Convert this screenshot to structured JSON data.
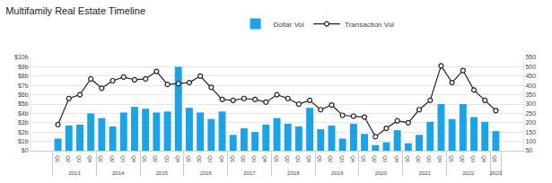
{
  "chart_data": {
    "type": "bar",
    "title": "Multifamily Real Estate Timeline",
    "categories": [
      "Q1",
      "Q2",
      "Q3",
      "Q4",
      "Q1",
      "Q2",
      "Q3",
      "Q4",
      "Q1",
      "Q2",
      "Q3",
      "Q4",
      "Q1",
      "Q2",
      "Q3",
      "Q4",
      "Q1",
      "Q2",
      "Q3",
      "Q4",
      "Q1",
      "Q2",
      "Q3",
      "Q4",
      "Q1",
      "Q2",
      "Q3",
      "Q4",
      "Q1",
      "Q2",
      "Q3",
      "Q4",
      "Q1",
      "Q2",
      "Q3",
      "Q4",
      "Q1",
      "Q2",
      "Q3",
      "Q4",
      "Q1"
    ],
    "years": [
      "2013",
      "2013",
      "2013",
      "2013",
      "2014",
      "2014",
      "2014",
      "2014",
      "2015",
      "2015",
      "2015",
      "2015",
      "2016",
      "2016",
      "2016",
      "2016",
      "2017",
      "2017",
      "2017",
      "2017",
      "2018",
      "2018",
      "2018",
      "2018",
      "2019",
      "2019",
      "2019",
      "2019",
      "2020",
      "2020",
      "2020",
      "2020",
      "2021",
      "2021",
      "2021",
      "2021",
      "2022",
      "2022",
      "2022",
      "2022",
      "2023"
    ],
    "series": [
      {
        "name": "Dollar Vol",
        "type": "bar",
        "color": "#1aa3e8",
        "values": [
          1.3,
          2.7,
          2.8,
          4.0,
          3.5,
          2.6,
          4.1,
          4.7,
          4.5,
          4.1,
          4.2,
          9.0,
          4.6,
          4.1,
          3.4,
          4.2,
          1.7,
          2.4,
          2.0,
          2.8,
          3.5,
          2.9,
          2.6,
          4.6,
          2.3,
          2.7,
          1.3,
          2.9,
          1.8,
          0.6,
          0.9,
          2.2,
          0.8,
          1.7,
          3.1,
          5.0,
          3.4,
          5.0,
          3.6,
          3.1,
          2.1
        ]
      },
      {
        "name": "Transaction Vol",
        "type": "line",
        "color": "#222222",
        "axis": "y2",
        "marker": "circle",
        "line_style": "solid",
        "values": [
          190,
          330,
          350,
          435,
          385,
          425,
          445,
          430,
          435,
          475,
          405,
          410,
          415,
          450,
          390,
          325,
          320,
          330,
          325,
          310,
          350,
          330,
          300,
          320,
          270,
          295,
          240,
          235,
          230,
          125,
          170,
          210,
          200,
          270,
          320,
          505,
          415,
          480,
          375,
          320,
          265
        ]
      }
    ],
    "ylim": [
      0,
      10
    ],
    "yticks": [
      {
        "value": 0,
        "label": "$0"
      },
      {
        "value": 1,
        "label": "$1b"
      },
      {
        "value": 2,
        "label": "$2b"
      },
      {
        "value": 3,
        "label": "$3b"
      },
      {
        "value": 4,
        "label": "$4b"
      },
      {
        "value": 5,
        "label": "$5b"
      },
      {
        "value": 6,
        "label": "$6b"
      },
      {
        "value": 7,
        "label": "$7b"
      },
      {
        "value": 8,
        "label": "$8b"
      },
      {
        "value": 9,
        "label": "$9b"
      },
      {
        "value": 10,
        "label": "$10b"
      }
    ],
    "y2lim": [
      50,
      550
    ],
    "y2ticks": [
      50,
      100,
      150,
      200,
      250,
      300,
      350,
      400,
      450,
      500,
      550
    ],
    "grid": true,
    "legend": "top"
  }
}
